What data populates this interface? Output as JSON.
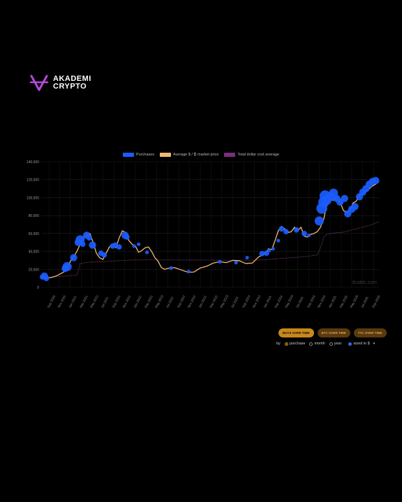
{
  "brand": {
    "line1": "AKADEMI",
    "line2": "CRYPTO",
    "accent": "#b14ad8"
  },
  "colors": {
    "purchases": "#1a5cff",
    "price": "#f2b872",
    "average": "#7a2f7a",
    "background": "#000000"
  },
  "legend": [
    {
      "label": "Purchases",
      "color": "#1a5cff"
    },
    {
      "label": "Average $ / ₿ market price",
      "color": "#f2b872"
    },
    {
      "label": "Total dollar cost average",
      "color": "#7a2f7a"
    }
  ],
  "watermark": "dcabtc.com",
  "buttons": [
    {
      "label": "BUYS OVER TIME",
      "active": true
    },
    {
      "label": "BTC OVER TIME",
      "active": false
    },
    {
      "label": "TTC OVER TIME",
      "active": false
    }
  ],
  "controls": {
    "by_label": "by",
    "options": [
      {
        "label": "purchase",
        "selected": true
      },
      {
        "label": "month",
        "selected": false
      },
      {
        "label": "year",
        "selected": false
      }
    ],
    "sized_label": "sized in $"
  },
  "chart_data": {
    "type": "scatter",
    "ylim": [
      0,
      140000
    ],
    "yticks": [
      0,
      20000,
      40000,
      60000,
      80000,
      100000,
      120000,
      140000
    ],
    "ytick_labels": [
      "0",
      "20,000",
      "40,000",
      "60,000",
      "80,000",
      "100,000",
      "120,000",
      "140,000"
    ],
    "xlim": [
      2020.55,
      2025.75
    ],
    "xticks": [
      2020.67,
      2020.83,
      2021.0,
      2021.17,
      2021.33,
      2021.5,
      2021.67,
      2021.83,
      2022.0,
      2022.17,
      2022.33,
      2022.5,
      2022.67,
      2022.83,
      2023.0,
      2023.17,
      2023.33,
      2023.5,
      2023.67,
      2023.83,
      2024.0,
      2024.17,
      2024.33,
      2024.5,
      2024.67,
      2024.83,
      2025.0,
      2025.17,
      2025.33,
      2025.5,
      2025.67
    ],
    "xtick_labels": [
      "Sep 2020",
      "Nov 2020",
      "Jan 2021",
      "Mar 2021",
      "May 2021",
      "Jul 2021",
      "Sep 2021",
      "Nov 2021",
      "Jan 2022",
      "Mar 2022",
      "May 2022",
      "Jul 2022",
      "Sep 2022",
      "Nov 2022",
      "Jan 2023",
      "Mar 2023",
      "May 2023",
      "Jul 2023",
      "Sep 2023",
      "Nov 2023",
      "Jan 2024",
      "Mar 2024",
      "May 2024",
      "Jul 2024",
      "Sep 2024",
      "Nov 2024",
      "Jan 2025",
      "Mar 2025",
      "May 2025",
      "Jul 2025",
      "Sep 2025"
    ],
    "series": [
      {
        "name": "Average $ / ₿ market price",
        "x": [
          2020.55,
          2020.62,
          2020.7,
          2020.78,
          2020.86,
          2020.93,
          2021.0,
          2021.05,
          2021.1,
          2021.15,
          2021.2,
          2021.25,
          2021.3,
          2021.35,
          2021.4,
          2021.45,
          2021.5,
          2021.55,
          2021.6,
          2021.65,
          2021.7,
          2021.75,
          2021.8,
          2021.85,
          2021.9,
          2021.95,
          2022.0,
          2022.05,
          2022.1,
          2022.15,
          2022.2,
          2022.25,
          2022.3,
          2022.35,
          2022.4,
          2022.45,
          2022.5,
          2022.6,
          2022.7,
          2022.8,
          2022.85,
          2022.9,
          2023.0,
          2023.1,
          2023.2,
          2023.3,
          2023.4,
          2023.5,
          2023.6,
          2023.7,
          2023.8,
          2023.9,
          2024.0,
          2024.05,
          2024.1,
          2024.15,
          2024.2,
          2024.25,
          2024.3,
          2024.35,
          2024.4,
          2024.45,
          2024.5,
          2024.55,
          2024.6,
          2024.65,
          2024.7,
          2024.75,
          2024.8,
          2024.85,
          2024.9,
          2024.95,
          2025.0,
          2025.05,
          2025.1,
          2025.15,
          2025.2,
          2025.25,
          2025.3,
          2025.35,
          2025.4,
          2025.45,
          2025.5,
          2025.55,
          2025.6,
          2025.65,
          2025.7,
          2025.75
        ],
        "y": [
          11500,
          10500,
          10800,
          12500,
          15500,
          18500,
          29000,
          34000,
          40000,
          48000,
          56000,
          58000,
          60000,
          50000,
          38000,
          33000,
          31000,
          38000,
          45000,
          47000,
          44000,
          55000,
          63000,
          61000,
          52000,
          48000,
          46000,
          39000,
          41000,
          44000,
          45000,
          40000,
          33000,
          29000,
          22000,
          20000,
          21000,
          22000,
          19500,
          17000,
          16800,
          17000,
          21500,
          23500,
          27000,
          28500,
          27500,
          30000,
          29500,
          26500,
          27000,
          34000,
          37500,
          43000,
          42000,
          52000,
          63000,
          68000,
          65000,
          61000,
          62000,
          67000,
          63000,
          67000,
          57000,
          56000,
          59000,
          60000,
          62000,
          67000,
          76000,
          93000,
          98000,
          97000,
          100000,
          96000,
          86000,
          83000,
          85000,
          94000,
          96000,
          103000,
          105000,
          107000,
          110000,
          113000,
          115000,
          118000
        ]
      },
      {
        "name": "Total dollar cost average",
        "x": [
          2020.55,
          2020.8,
          2021.1,
          2021.15,
          2021.3,
          2021.5,
          2021.6,
          2021.8,
          2022.0,
          2022.4,
          2022.8,
          2023.2,
          2023.6,
          2023.9,
          2024.0,
          2024.2,
          2024.5,
          2024.7,
          2024.8,
          2024.85,
          2024.9,
          2024.95,
          2025.0,
          2025.2,
          2025.4,
          2025.6,
          2025.75
        ],
        "y": [
          11000,
          11800,
          13500,
          26500,
          28000,
          28500,
          29000,
          30000,
          30500,
          30500,
          30400,
          30300,
          30200,
          30300,
          30600,
          32000,
          33500,
          35000,
          36000,
          44000,
          56000,
          59000,
          60000,
          61500,
          65000,
          69000,
          73000
        ]
      },
      {
        "name": "Purchases",
        "x": [
          2020.57,
          2020.6,
          2020.63,
          2020.92,
          2020.95,
          2021.05,
          2021.12,
          2021.15,
          2021.19,
          2021.25,
          2021.29,
          2021.34,
          2021.47,
          2021.52,
          2021.65,
          2021.69,
          2021.75,
          2021.84,
          2021.87,
          2021.98,
          2022.05,
          2022.18,
          2022.55,
          2022.82,
          2023.3,
          2023.55,
          2023.72,
          2023.95,
          2024.02,
          2024.06,
          2024.12,
          2024.2,
          2024.25,
          2024.32,
          2024.48,
          2024.6,
          2024.67,
          2024.83,
          2024.87,
          2024.9,
          2024.92,
          2024.95,
          2025.0,
          2025.05,
          2025.1,
          2025.15,
          2025.22,
          2025.27,
          2025.33,
          2025.38,
          2025.45,
          2025.5,
          2025.55,
          2025.6,
          2025.65,
          2025.7
        ],
        "y": [
          11500,
          12500,
          9800,
          21000,
          23000,
          33000,
          50000,
          53000,
          48000,
          58000,
          55000,
          47000,
          38000,
          36000,
          46000,
          47000,
          45000,
          58000,
          56000,
          46000,
          48000,
          39000,
          21500,
          17500,
          28500,
          27500,
          33000,
          37500,
          38000,
          41000,
          43000,
          52000,
          65000,
          62000,
          64000,
          60000,
          58000,
          74000,
          88000,
          95000,
          102000,
          97000,
          101000,
          105000,
          99000,
          95000,
          99000,
          82000,
          87000,
          90000,
          101000,
          106000,
          110000,
          115000,
          118000,
          119000
        ],
        "amounts": [
          3,
          4,
          3,
          4,
          5,
          4,
          4,
          5,
          3,
          4,
          3,
          4,
          3,
          3,
          3,
          3,
          3,
          4,
          3,
          2,
          2,
          2,
          2,
          2,
          2,
          2,
          2,
          3,
          3,
          2,
          2,
          2,
          3,
          3,
          3,
          3,
          2,
          5,
          6,
          6,
          6,
          5,
          5,
          5,
          4,
          4,
          4,
          4,
          4,
          4,
          4,
          4,
          4,
          4,
          4,
          4
        ]
      }
    ],
    "grid": true,
    "legend_position": "top-center"
  }
}
